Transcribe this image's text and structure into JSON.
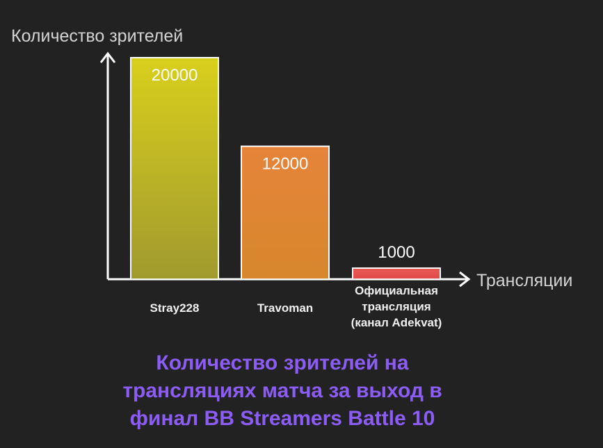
{
  "chart_data": {
    "type": "bar",
    "ylabel": "Количество зрителей",
    "xlabel": "Трансляции",
    "categories": [
      [
        "Stray228"
      ],
      [
        "Travoman"
      ],
      [
        "Официальная",
        "трансляция",
        "(канал Adekvat)"
      ]
    ],
    "values": [
      20000,
      12000,
      1000
    ],
    "value_labels": [
      "20000",
      "12000",
      "1000"
    ],
    "ylim": [
      0,
      20000
    ],
    "colors": [
      "#c8c020",
      "#e38532",
      "#e65555"
    ],
    "grid": false,
    "legend": "none",
    "caption": [
      "Количество зрителей на",
      "трансляциях матча за выход в",
      "финал BB Streamers Battle 10"
    ]
  }
}
